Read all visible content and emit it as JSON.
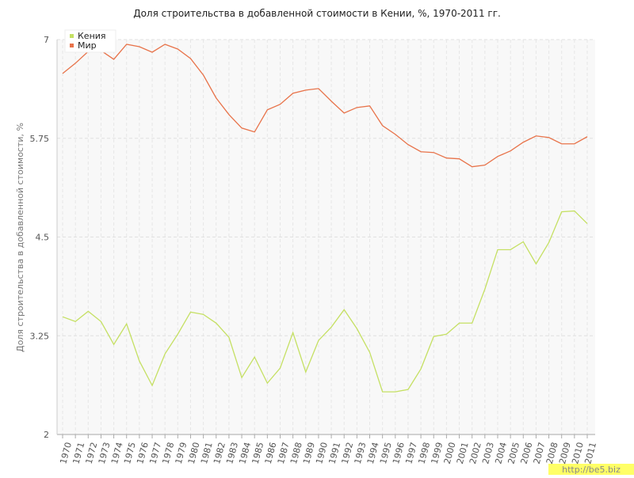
{
  "chart_data": {
    "type": "line",
    "title": "Доля строительства в добавленной стоимости в Кении, %, 1970-2011 гг.",
    "y_label": "Доля строительства в добавленной стоимости, %",
    "categories": [
      "1970",
      "1971",
      "1972",
      "1973",
      "1974",
      "1975",
      "1976",
      "1977",
      "1978",
      "1979",
      "1980",
      "1981",
      "1982",
      "1983",
      "1984",
      "1985",
      "1986",
      "1987",
      "1988",
      "1989",
      "1990",
      "1991",
      "1992",
      "1993",
      "1994",
      "1995",
      "1996",
      "1997",
      "1998",
      "1999",
      "2000",
      "2001",
      "2002",
      "2003",
      "2004",
      "2005",
      "2006",
      "2007",
      "2008",
      "2009",
      "2010",
      "2011"
    ],
    "series": [
      {
        "name": "Кения",
        "color": "#c5e063",
        "values": [
          3.49,
          3.43,
          3.56,
          3.43,
          3.14,
          3.4,
          2.93,
          2.62,
          3.02,
          3.27,
          3.55,
          3.52,
          3.41,
          3.23,
          2.72,
          2.98,
          2.65,
          2.84,
          3.29,
          2.79,
          3.19,
          3.36,
          3.58,
          3.34,
          3.04,
          2.54,
          2.54,
          2.57,
          2.83,
          3.24,
          3.27,
          3.41,
          3.41,
          3.84,
          4.34,
          4.34,
          4.44,
          4.16,
          4.43,
          4.82,
          4.83,
          4.67
        ]
      },
      {
        "name": "Мир",
        "color": "#e8734a",
        "values": [
          6.57,
          6.7,
          6.85,
          6.86,
          6.75,
          6.94,
          6.91,
          6.84,
          6.94,
          6.88,
          6.76,
          6.55,
          6.26,
          6.05,
          5.88,
          5.83,
          6.11,
          6.18,
          6.32,
          6.36,
          6.38,
          6.22,
          6.07,
          6.14,
          6.16,
          5.91,
          5.8,
          5.67,
          5.58,
          5.57,
          5.5,
          5.49,
          5.39,
          5.41,
          5.52,
          5.59,
          5.7,
          5.78,
          5.76,
          5.68,
          5.68,
          5.77
        ]
      }
    ],
    "ylim": [
      2,
      7
    ],
    "yticks": [
      2,
      3.25,
      4.5,
      5.75,
      7
    ],
    "grid": true,
    "legend": "top-left",
    "watermark": "http://be5.biz"
  }
}
